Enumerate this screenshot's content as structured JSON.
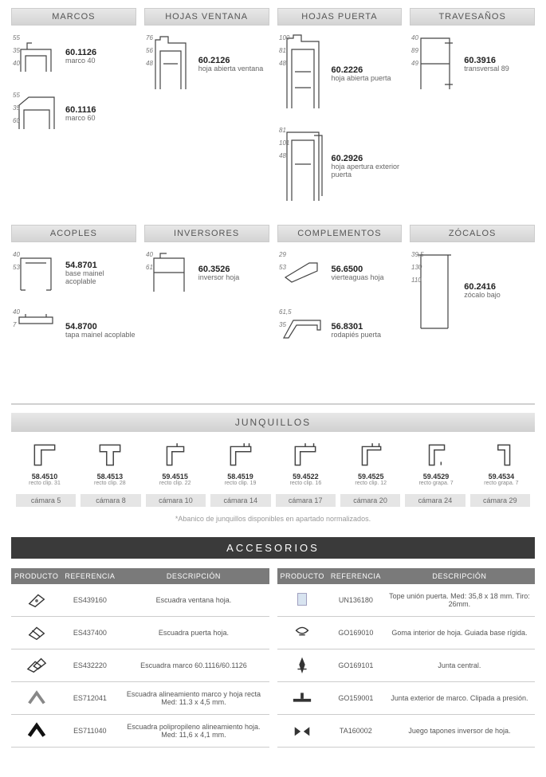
{
  "sections_top": [
    {
      "title": "MARCOS",
      "items": [
        {
          "code": "60.1126",
          "desc": "marco 40",
          "dims": [
            "55",
            "35",
            "40"
          ],
          "shape": "marco40"
        },
        {
          "code": "60.1116",
          "desc": "marco 60",
          "dims": [
            "55",
            "35",
            "60"
          ],
          "shape": "marco60"
        }
      ]
    },
    {
      "title": "HOJAS VENTANA",
      "items": [
        {
          "code": "60.2126",
          "desc": "hoja abierta ventana",
          "dims": [
            "76",
            "56",
            "48"
          ],
          "shape": "hojavent",
          "tall": true
        }
      ]
    },
    {
      "title": "HOJAS PUERTA",
      "items": [
        {
          "code": "60.2226",
          "desc": "hoja abierta puerta",
          "dims": [
            "100",
            "81",
            "48"
          ],
          "shape": "hojapuerta",
          "taller": true
        },
        {
          "code": "60.2926",
          "desc": "hoja apertura exterior puerta",
          "dims": [
            "81",
            "101",
            "48"
          ],
          "shape": "hojapuertaext",
          "taller": true
        }
      ]
    },
    {
      "title": "TRAVESAÑOS",
      "items": [
        {
          "code": "60.3916",
          "desc": "transversal 89",
          "dims": [
            "40",
            "89",
            "49"
          ],
          "shape": "trav",
          "tall": true
        }
      ]
    }
  ],
  "sections_bottom": [
    {
      "title": "ACOPLES",
      "items": [
        {
          "code": "54.8701",
          "desc": "base mainel acoplable",
          "dims": [
            "40",
            "53"
          ],
          "shape": "acople1"
        },
        {
          "code": "54.8700",
          "desc": "tapa mainel acoplable",
          "dims": [
            "40",
            "7"
          ],
          "shape": "acople2"
        }
      ]
    },
    {
      "title": "INVERSORES",
      "items": [
        {
          "code": "60.3526",
          "desc": "inversor hoja",
          "dims": [
            "40",
            "61"
          ],
          "shape": "inversor"
        }
      ]
    },
    {
      "title": "COMPLEMENTOS",
      "items": [
        {
          "code": "56.6500",
          "desc": "vierteaguas hoja",
          "dims": [
            "29",
            "53"
          ],
          "shape": "vierte"
        },
        {
          "code": "56.8301",
          "desc": "rodapiés puerta",
          "dims": [
            "61,5",
            "35"
          ],
          "shape": "rodapie"
        }
      ]
    },
    {
      "title": "ZÓCALOS",
      "items": [
        {
          "code": "60.2416",
          "desc": "zócalo bajo",
          "dims": [
            "39,5",
            "130",
            "110"
          ],
          "shape": "zocalo",
          "taller": true
        }
      ]
    }
  ],
  "junquillos": {
    "title": "JUNQUILLOS",
    "items": [
      {
        "code": "58.4510",
        "sub": "recto clip. 31"
      },
      {
        "code": "58.4513",
        "sub": "recto clip. 28"
      },
      {
        "code": "59.4515",
        "sub": "recto clip. 22"
      },
      {
        "code": "58.4519",
        "sub": "recto clip. 19"
      },
      {
        "code": "59.4522",
        "sub": "recto clip. 16"
      },
      {
        "code": "59.4525",
        "sub": "recto clip. 12"
      },
      {
        "code": "59.4529",
        "sub": "recto grapa. 7"
      },
      {
        "code": "59.4534",
        "sub": "recto grapa. 7"
      }
    ],
    "chambers": [
      "cámara 5",
      "cámara 8",
      "cámara 10",
      "cámara 14",
      "cámara 17",
      "cámara 20",
      "cámara 24",
      "cámara 29"
    ],
    "footnote": "*Abanico de junquillos disponibles en apartado normalizados."
  },
  "accesorios": {
    "title": "ACCESORIOS",
    "headers": [
      "PRODUCTO",
      "REFERENCIA",
      "DESCRIPCIÓN"
    ],
    "left": [
      {
        "ref": "ES439160",
        "desc": "Escuadra ventana hoja.",
        "icon": "bracket1"
      },
      {
        "ref": "ES437400",
        "desc": "Escuadra puerta hoja.",
        "icon": "bracket2"
      },
      {
        "ref": "ES432220",
        "desc": "Escuadra marco 60.1116/60.1126",
        "icon": "bracket3"
      },
      {
        "ref": "ES712041",
        "desc": "Escuadra alineamiento marco y hoja recta Med: 11.3 x 4,5 mm.",
        "icon": "angle1"
      },
      {
        "ref": "ES711040",
        "desc": "Escuadra polipropileno alineamiento hoja. Med: 11,6 x 4,1 mm.",
        "icon": "angle2"
      }
    ],
    "right": [
      {
        "ref": "UN136180",
        "desc": "Tope unión puerta. Med: 35,8 x 18 mm. Tiro: 26mm.",
        "icon": "tope"
      },
      {
        "ref": "GO169010",
        "desc": "Goma interior de hoja. Guiada base rígida.",
        "icon": "goma1"
      },
      {
        "ref": "GO169101",
        "desc": "Junta central.",
        "icon": "junta"
      },
      {
        "ref": "GO159001",
        "desc": "Junta exterior de marco. Clipada a presión.",
        "icon": "goma2"
      },
      {
        "ref": "TA160002",
        "desc": "Juego tapones inversor de hoja.",
        "icon": "tapones"
      }
    ]
  },
  "colors": {
    "stroke": "#444",
    "dim": "#888",
    "header_bg": "#dcdcdc"
  }
}
